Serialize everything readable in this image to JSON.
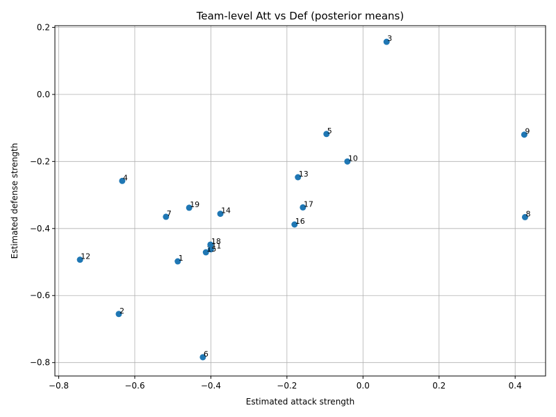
{
  "chart_data": {
    "type": "scatter",
    "title": "Team-level Att vs Def (posterior means)",
    "xlabel": "Estimated attack strength",
    "ylabel": "Estimated defense strength",
    "xlim": [
      -0.81,
      0.48
    ],
    "ylim": [
      -0.84,
      0.205
    ],
    "xticks": [
      -0.8,
      -0.6,
      -0.4,
      -0.2,
      0.0,
      0.2,
      0.4
    ],
    "yticks": [
      -0.8,
      -0.6,
      -0.4,
      -0.2,
      0.0,
      0.2
    ],
    "xtick_labels": [
      "−0.8",
      "−0.6",
      "−0.4",
      "−0.2",
      "0.0",
      "0.2",
      "0.4"
    ],
    "ytick_labels": [
      "−0.8",
      "−0.6",
      "−0.4",
      "−0.2",
      "0.0",
      "0.2"
    ],
    "grid": true,
    "marker_color": "#1f77b4",
    "points": [
      {
        "label": "1",
        "x": -0.487,
        "y": -0.498
      },
      {
        "label": "2",
        "x": -0.642,
        "y": -0.655
      },
      {
        "label": "3",
        "x": 0.062,
        "y": 0.157
      },
      {
        "label": "4",
        "x": -0.633,
        "y": -0.258
      },
      {
        "label": "5",
        "x": -0.096,
        "y": -0.118
      },
      {
        "label": "6",
        "x": -0.421,
        "y": -0.784
      },
      {
        "label": "7",
        "x": -0.518,
        "y": -0.365
      },
      {
        "label": "8",
        "x": 0.426,
        "y": -0.366
      },
      {
        "label": "9",
        "x": 0.424,
        "y": -0.12
      },
      {
        "label": "10",
        "x": -0.041,
        "y": -0.2
      },
      {
        "label": "11",
        "x": -0.4,
        "y": -0.462
      },
      {
        "label": "12",
        "x": -0.744,
        "y": -0.493
      },
      {
        "label": "13",
        "x": -0.171,
        "y": -0.247
      },
      {
        "label": "14",
        "x": -0.375,
        "y": -0.356
      },
      {
        "label": "15",
        "x": -0.413,
        "y": -0.471
      },
      {
        "label": "16",
        "x": -0.18,
        "y": -0.388
      },
      {
        "label": "17",
        "x": -0.158,
        "y": -0.337
      },
      {
        "label": "18",
        "x": -0.401,
        "y": -0.448
      },
      {
        "label": "19",
        "x": -0.457,
        "y": -0.338
      }
    ]
  }
}
